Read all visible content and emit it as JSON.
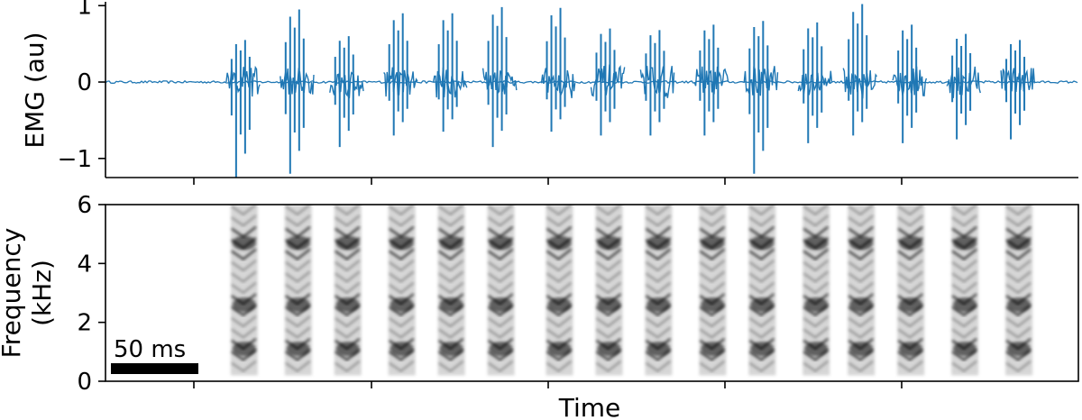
{
  "chart_data": [
    {
      "type": "line",
      "panel": "top",
      "ylabel": "EMG (au)",
      "ylim": [
        -1.25,
        1.05
      ],
      "yticks": [
        -1,
        0,
        1
      ],
      "ytick_labels": [
        "−1",
        "0",
        "1"
      ],
      "series_color": "#1f77b4",
      "bursts": [
        {
          "t": 0.15,
          "max": 0.55,
          "min": -1.25
        },
        {
          "t": 0.21,
          "max": 0.95,
          "min": -1.2
        },
        {
          "t": 0.265,
          "max": 0.6,
          "min": -0.85
        },
        {
          "t": 0.325,
          "max": 0.9,
          "min": -0.7
        },
        {
          "t": 0.38,
          "max": 0.9,
          "min": -0.65
        },
        {
          "t": 0.435,
          "max": 0.98,
          "min": -0.85
        },
        {
          "t": 0.5,
          "max": 0.97,
          "min": -0.65
        },
        {
          "t": 0.555,
          "max": 0.7,
          "min": -0.7
        },
        {
          "t": 0.61,
          "max": 0.68,
          "min": -0.7
        },
        {
          "t": 0.67,
          "max": 0.75,
          "min": -0.7
        },
        {
          "t": 0.725,
          "max": 0.8,
          "min": -1.2
        },
        {
          "t": 0.785,
          "max": 0.78,
          "min": -0.8
        },
        {
          "t": 0.835,
          "max": 1.02,
          "min": -0.7
        },
        {
          "t": 0.89,
          "max": 0.75,
          "min": -0.8
        },
        {
          "t": 0.95,
          "max": 0.63,
          "min": -0.75
        },
        {
          "t": 1.01,
          "max": 0.55,
          "min": -0.75
        }
      ]
    },
    {
      "type": "heatmap",
      "panel": "bottom",
      "xlabel": "Time",
      "ylabel_lines": [
        "Frequency",
        "(kHz)"
      ],
      "ylim": [
        0,
        6
      ],
      "yticks": [
        0,
        2,
        4,
        6
      ],
      "ytick_labels": [
        "0",
        "2",
        "4",
        "6"
      ],
      "colormap": "gray_r",
      "syllable_times": [
        0.15,
        0.21,
        0.265,
        0.325,
        0.38,
        0.435,
        0.5,
        0.555,
        0.61,
        0.67,
        0.725,
        0.785,
        0.835,
        0.89,
        0.95,
        1.01
      ],
      "formant_bands_khz": [
        1.1,
        2.6,
        4.7
      ],
      "scale_bar": {
        "label": "50 ms"
      }
    }
  ]
}
